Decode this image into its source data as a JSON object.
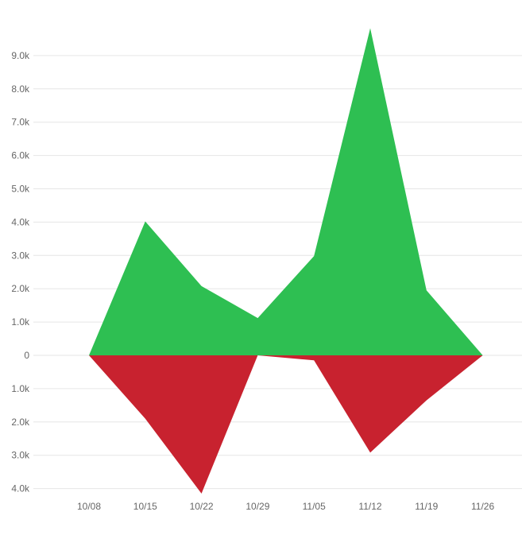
{
  "chart_data": {
    "type": "area",
    "categories": [
      "10/08",
      "10/15",
      "10/22",
      "10/29",
      "11/05",
      "11/12",
      "11/19",
      "11/26"
    ],
    "series": [
      {
        "color": "#2ebf52",
        "values": [
          0,
          4020,
          2080,
          1120,
          2980,
          9820,
          1950,
          0
        ]
      },
      {
        "color": "#c8222f",
        "values": [
          0,
          -1900,
          -4150,
          0,
          -150,
          -2920,
          -1350,
          0
        ]
      }
    ],
    "y_tick_values": [
      -4000,
      -3000,
      -2000,
      -1000,
      0,
      1000,
      2000,
      3000,
      4000,
      5000,
      6000,
      7000,
      8000,
      9000
    ],
    "y_tick_labels": [
      "4.0k",
      "3.0k",
      "2.0k",
      "1.0k",
      "0",
      "1.0k",
      "2.0k",
      "3.0k",
      "4.0k",
      "5.0k",
      "6.0k",
      "7.0k",
      "8.0k",
      "9.0k"
    ],
    "ylim": [
      -4000,
      9000
    ],
    "grid": true,
    "title": "",
    "xlabel": "",
    "ylabel": "",
    "colors": {
      "grid": "#e6e6e6",
      "tick_text": "#666666"
    }
  }
}
